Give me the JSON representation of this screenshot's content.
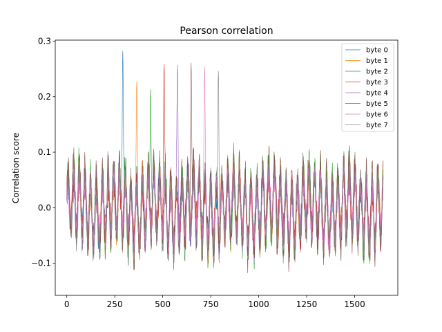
{
  "chart_data": {
    "type": "line",
    "title": "Pearson correlation",
    "xlabel": "",
    "ylabel": "Correlation score",
    "xlim": [
      -60,
      1725
    ],
    "ylim": [
      -0.158,
      0.302
    ],
    "xticks": [
      0,
      250,
      500,
      750,
      1000,
      1250,
      1500
    ],
    "xtick_labels": [
      "0",
      "250",
      "500",
      "750",
      "1000",
      "1250",
      "1500"
    ],
    "yticks": [
      -0.1,
      0.0,
      0.1,
      0.2,
      0.3
    ],
    "ytick_labels": [
      "−0.1",
      "0.0",
      "0.1",
      "0.2",
      "0.3"
    ],
    "grid": false,
    "legend_position": "top-right",
    "n_points": 1650,
    "series": [
      {
        "name": "byte 0",
        "color": "#1f77b4",
        "peak": {
          "x": 292,
          "y": 0.282
        },
        "min_value": -0.158,
        "max_background": 0.15
      },
      {
        "name": "byte 1",
        "color": "#ff7f0e",
        "peak": {
          "x": 365,
          "y": 0.227
        },
        "min_value": -0.13,
        "max_background": 0.13
      },
      {
        "name": "byte 2",
        "color": "#2ca02c",
        "peak": {
          "x": 437,
          "y": 0.213
        },
        "min_value": -0.12,
        "max_background": 0.12
      },
      {
        "name": "byte 3",
        "color": "#d62728",
        "peak": {
          "x": 507,
          "y": 0.259
        },
        "min_value": -0.13,
        "max_background": 0.13
      },
      {
        "name": "byte 4",
        "color": "#9467bd",
        "peak": {
          "x": 577,
          "y": 0.257
        },
        "min_value": -0.12,
        "max_background": 0.13
      },
      {
        "name": "byte 5",
        "color": "#8c564b",
        "peak": {
          "x": 648,
          "y": 0.261
        },
        "min_value": -0.12,
        "max_background": 0.13
      },
      {
        "name": "byte 6",
        "color": "#e377c2",
        "peak": {
          "x": 718,
          "y": 0.253
        },
        "min_value": -0.13,
        "max_background": 0.13
      },
      {
        "name": "byte 7",
        "color": "#7f7f7f",
        "peak": {
          "x": 790,
          "y": 0.246
        },
        "min_value": -0.12,
        "max_background": 0.13
      }
    ]
  }
}
